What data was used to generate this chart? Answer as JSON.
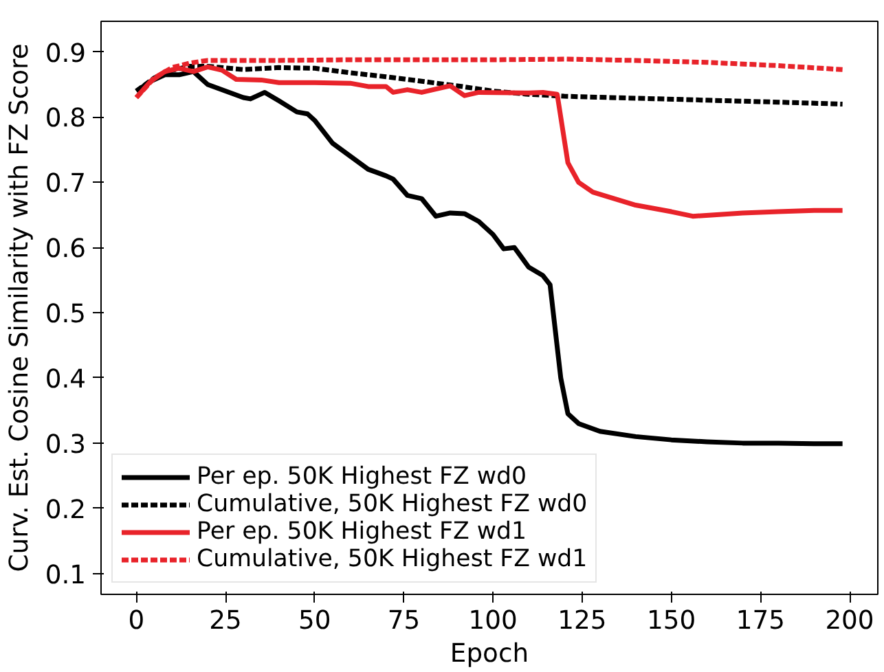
{
  "chart_data": {
    "type": "line",
    "xlabel": "Epoch",
    "ylabel": "Curv. Est. Cosine Similarity with FZ Score",
    "xlim": [
      -9.9,
      207.9
    ],
    "ylim": [
      0.068,
      0.947
    ],
    "xticks": [
      0,
      25,
      50,
      75,
      100,
      125,
      150,
      175,
      200
    ],
    "yticks": [
      0.1,
      0.2,
      0.3,
      0.4,
      0.5,
      0.6,
      0.7,
      0.8,
      0.9
    ],
    "legend": "bottom left",
    "grid": false,
    "series": [
      {
        "name": "Per ep. 50K Highest FZ wd0",
        "color": "#000000",
        "line_style": "solid",
        "x": [
          0,
          4,
          8,
          12,
          16,
          20,
          25,
          30,
          32,
          36,
          40,
          45,
          48,
          50,
          55,
          60,
          65,
          70,
          72,
          76,
          80,
          84,
          88,
          92,
          96,
          100,
          103,
          106,
          110,
          114,
          116,
          119,
          121,
          124,
          130,
          140,
          150,
          160,
          170,
          180,
          190,
          198
        ],
        "values": [
          0.84,
          0.855,
          0.865,
          0.865,
          0.87,
          0.85,
          0.84,
          0.83,
          0.828,
          0.838,
          0.825,
          0.808,
          0.805,
          0.795,
          0.76,
          0.74,
          0.72,
          0.71,
          0.705,
          0.68,
          0.675,
          0.648,
          0.653,
          0.652,
          0.64,
          0.62,
          0.598,
          0.6,
          0.57,
          0.557,
          0.543,
          0.4,
          0.345,
          0.33,
          0.318,
          0.31,
          0.305,
          0.302,
          0.3,
          0.3,
          0.299,
          0.299
        ]
      },
      {
        "name": "Cumulative, 50K Highest FZ wd0",
        "color": "#000000",
        "line_style": "dashed",
        "x": [
          0,
          5,
          10,
          15,
          20,
          30,
          40,
          50,
          60,
          70,
          80,
          90,
          100,
          110,
          120,
          140,
          160,
          180,
          198
        ],
        "values": [
          0.84,
          0.86,
          0.872,
          0.878,
          0.878,
          0.873,
          0.876,
          0.875,
          0.868,
          0.862,
          0.855,
          0.848,
          0.84,
          0.835,
          0.832,
          0.829,
          0.826,
          0.823,
          0.82
        ]
      },
      {
        "name": "Per ep. 50K Highest FZ wd1",
        "color": "#e8232a",
        "line_style": "solid",
        "x": [
          0,
          4,
          8,
          12,
          16,
          20,
          24,
          28,
          35,
          40,
          50,
          60,
          65,
          70,
          72,
          76,
          80,
          88,
          92,
          96,
          110,
          114,
          118,
          121,
          124,
          128,
          134,
          140,
          150,
          156,
          162,
          170,
          180,
          190,
          198
        ],
        "values": [
          0.83,
          0.855,
          0.87,
          0.875,
          0.87,
          0.877,
          0.872,
          0.858,
          0.857,
          0.853,
          0.853,
          0.852,
          0.847,
          0.847,
          0.838,
          0.842,
          0.838,
          0.848,
          0.833,
          0.838,
          0.837,
          0.838,
          0.835,
          0.73,
          0.7,
          0.685,
          0.675,
          0.665,
          0.655,
          0.648,
          0.65,
          0.653,
          0.655,
          0.657,
          0.657
        ]
      },
      {
        "name": "Cumulative, 50K Highest FZ wd1",
        "color": "#e8232a",
        "line_style": "dashed",
        "x": [
          0,
          5,
          10,
          15,
          20,
          40,
          60,
          80,
          100,
          120,
          140,
          160,
          180,
          198
        ],
        "values": [
          0.83,
          0.86,
          0.876,
          0.883,
          0.887,
          0.887,
          0.888,
          0.888,
          0.888,
          0.889,
          0.887,
          0.884,
          0.879,
          0.873
        ]
      }
    ]
  }
}
